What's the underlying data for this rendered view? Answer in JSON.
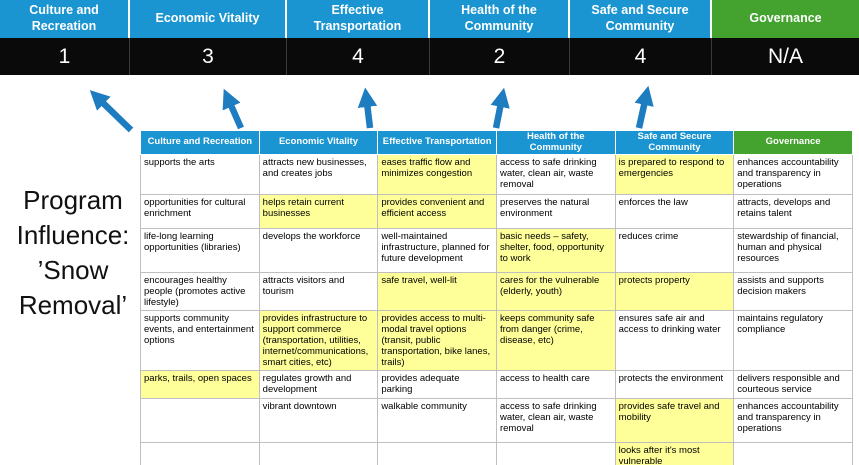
{
  "title": {
    "text": "Program Influence:\n’Snow Removal’"
  },
  "colors": {
    "category_blue": "#1b95d2",
    "category_green": "#44a32e",
    "score_bar_bg": "#0a0a0a",
    "score_text": "#ffffff",
    "highlight_yellow": "#ffff99",
    "arrow_blue": "#1e7cc0",
    "table_border": "#bfbfbf"
  },
  "scoreboard": {
    "columns": [
      {
        "label": "Culture and Recreation",
        "score": "1",
        "theme": "blue"
      },
      {
        "label": "Economic Vitality",
        "score": "3",
        "theme": "blue"
      },
      {
        "label": "Effective Transportation",
        "score": "4",
        "theme": "blue"
      },
      {
        "label": "Health of the Community",
        "score": "2",
        "theme": "blue"
      },
      {
        "label": "Safe and Secure Community",
        "score": "4",
        "theme": "blue"
      },
      {
        "label": "Governance",
        "score": "N/A",
        "theme": "green"
      }
    ]
  },
  "table": {
    "headers": [
      {
        "label": "Culture and Recreation",
        "theme": "blue"
      },
      {
        "label": "Economic Vitality",
        "theme": "blue"
      },
      {
        "label": "Effective Transportation",
        "theme": "blue"
      },
      {
        "label": "Health of the Community",
        "theme": "blue"
      },
      {
        "label": "Safe and Secure Community",
        "theme": "blue"
      },
      {
        "label": "Governance",
        "theme": "green"
      }
    ],
    "rows": [
      [
        {
          "text": "supports the arts",
          "highlight": false
        },
        {
          "text": "attracts new businesses, and creates jobs",
          "highlight": false
        },
        {
          "text": "eases traffic flow and minimizes congestion",
          "highlight": true
        },
        {
          "text": "access to safe drinking water, clean air, waste removal",
          "highlight": false
        },
        {
          "text": "is prepared to respond to emergencies",
          "highlight": true
        },
        {
          "text": "enhances accountability and transparency in operations",
          "highlight": false
        }
      ],
      [
        {
          "text": "opportunities for cultural enrichment",
          "highlight": false
        },
        {
          "text": "helps retain current businesses",
          "highlight": true
        },
        {
          "text": "provides convenient and efficient access",
          "highlight": true
        },
        {
          "text": "preserves the natural environment",
          "highlight": false
        },
        {
          "text": "enforces the law",
          "highlight": false
        },
        {
          "text": "attracts, develops and retains talent",
          "highlight": false
        }
      ],
      [
        {
          "text": "life-long learning opportunities (libraries)",
          "highlight": false
        },
        {
          "text": "develops the workforce",
          "highlight": false
        },
        {
          "text": "well-maintained infrastructure, planned for future development",
          "highlight": false
        },
        {
          "text": "basic needs – safety, shelter, food, opportunity to work",
          "highlight": true
        },
        {
          "text": "reduces crime",
          "highlight": false
        },
        {
          "text": "stewardship of financial, human and physical resources",
          "highlight": false
        }
      ],
      [
        {
          "text": "encourages healthy people (promotes active lifestyle)",
          "highlight": false
        },
        {
          "text": "attracts visitors and tourism",
          "highlight": false
        },
        {
          "text": "safe travel, well-lit",
          "highlight": true
        },
        {
          "text": "cares for the vulnerable (elderly, youth)",
          "highlight": true
        },
        {
          "text": "protects property",
          "highlight": true
        },
        {
          "text": "assists and supports decision makers",
          "highlight": false
        }
      ],
      [
        {
          "text": "supports community events, and entertainment options",
          "highlight": false
        },
        {
          "text": "provides infrastructure to support commerce (transportation, utilities, internet/communications, smart cities, etc)",
          "highlight": true
        },
        {
          "text": "provides access to multi-modal travel options (transit, public transportation, bike lanes, trails)",
          "highlight": true
        },
        {
          "text": "keeps community safe from danger (crime, disease, etc)",
          "highlight": true
        },
        {
          "text": "ensures safe air and access to drinking water",
          "highlight": false
        },
        {
          "text": "maintains regulatory compliance",
          "highlight": false
        }
      ],
      [
        {
          "text": "parks, trails, open spaces",
          "highlight": true
        },
        {
          "text": "regulates growth and development",
          "highlight": false
        },
        {
          "text": "provides adequate parking",
          "highlight": false
        },
        {
          "text": "access to health care",
          "highlight": false
        },
        {
          "text": "protects the environment",
          "highlight": false
        },
        {
          "text": "delivers responsible and courteous service",
          "highlight": false
        }
      ],
      [
        {
          "text": "",
          "highlight": false
        },
        {
          "text": "vibrant downtown",
          "highlight": false
        },
        {
          "text": "walkable community",
          "highlight": false
        },
        {
          "text": "access to safe drinking water, clean air, waste removal",
          "highlight": false
        },
        {
          "text": "provides safe travel and mobility",
          "highlight": true
        },
        {
          "text": "enhances accountability and transparency in operations",
          "highlight": false
        }
      ],
      [
        {
          "text": "",
          "highlight": false
        },
        {
          "text": "",
          "highlight": false
        },
        {
          "text": "",
          "highlight": false
        },
        {
          "text": "",
          "highlight": false
        },
        {
          "text": "looks after it's most vulnerable",
          "highlight": true
        },
        {
          "text": "",
          "highlight": false
        }
      ]
    ]
  }
}
